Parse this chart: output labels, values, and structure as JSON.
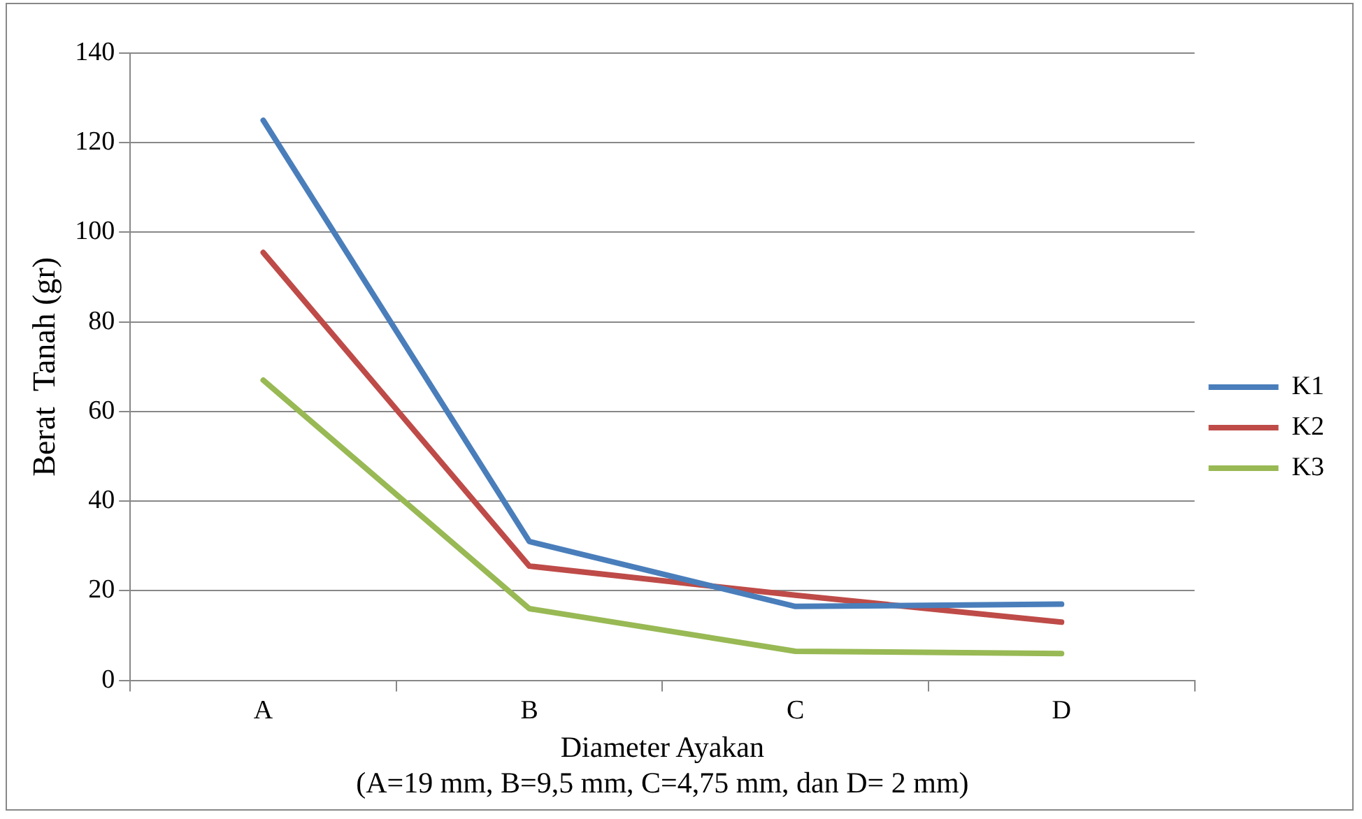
{
  "chart_data": {
    "type": "line",
    "ylabel": "Berat  Tanah (gr)",
    "xlabel": "Diameter Ayakan\n(A=19 mm, B=9,5 mm, C=4,75 mm, dan D= 2 mm)",
    "categories": [
      "A",
      "B",
      "C",
      "D"
    ],
    "series": [
      {
        "name": "K1",
        "color": "#4a7ebb",
        "values": [
          125,
          31,
          16.5,
          17
        ]
      },
      {
        "name": "K2",
        "color": "#be4b48",
        "values": [
          95.5,
          25.5,
          19,
          13
        ]
      },
      {
        "name": "K3",
        "color": "#98b954",
        "values": [
          67,
          16,
          6.5,
          6
        ]
      }
    ],
    "ylim": [
      0,
      140
    ],
    "yticks": [
      0,
      20,
      40,
      60,
      80,
      100,
      120,
      140
    ],
    "grid": "y",
    "legend": "right",
    "marker": "none",
    "line_style": "solid"
  }
}
